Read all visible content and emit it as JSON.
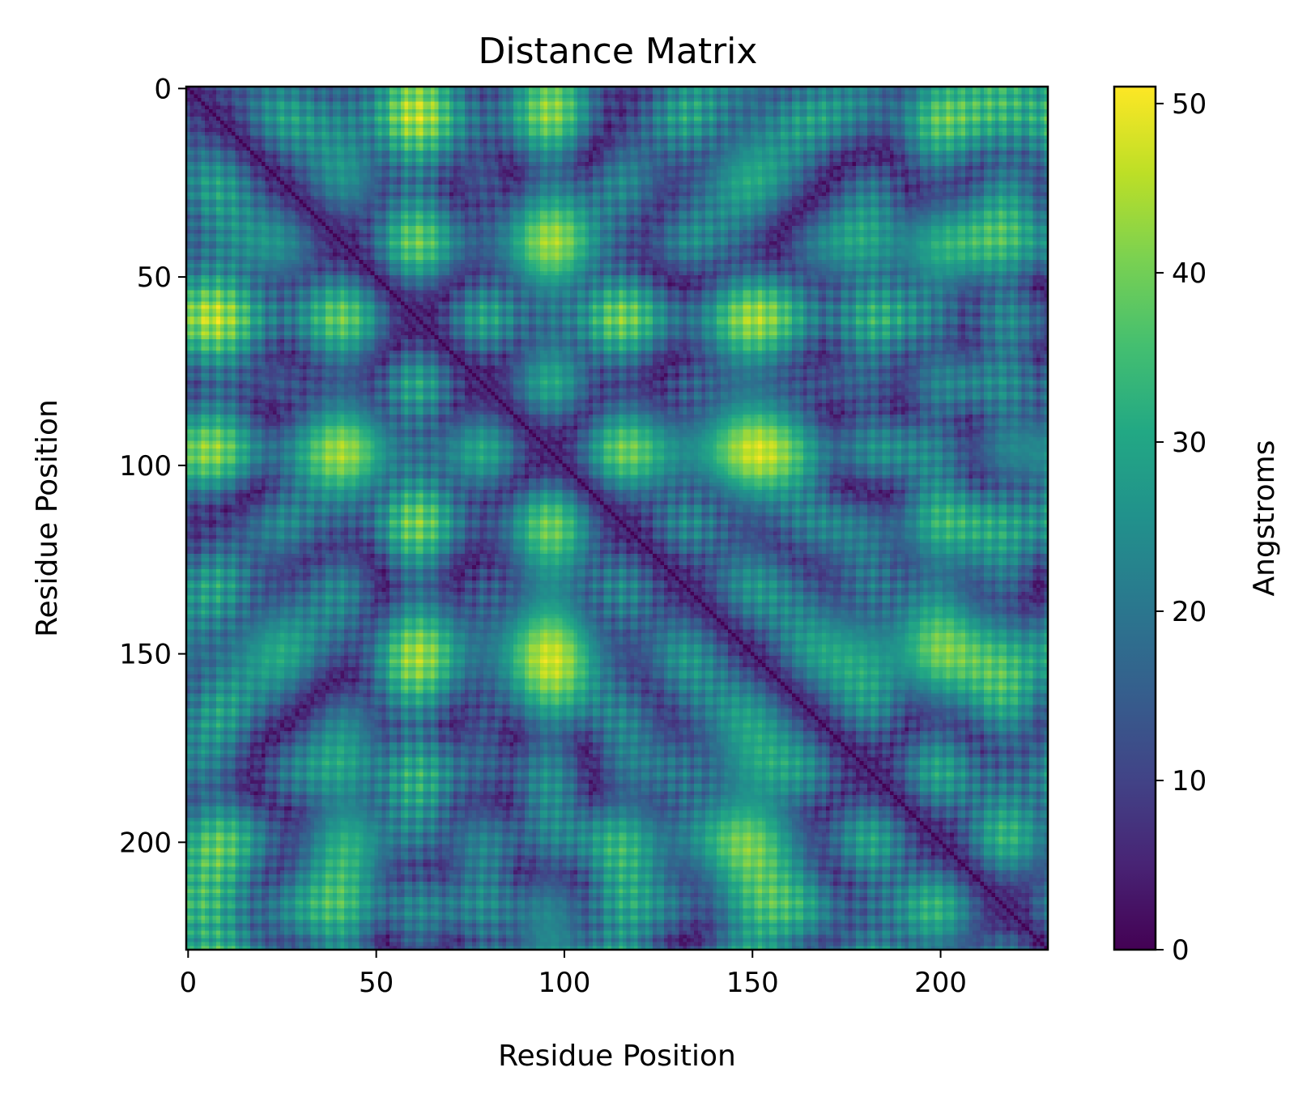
{
  "chart_data": {
    "type": "heatmap",
    "title": "Distance Matrix",
    "xlabel": "Residue Position",
    "ylabel": "Residue Position",
    "colorbar_label": "Angstroms",
    "colormap": "viridis",
    "n_residues": 229,
    "xlim": [
      0,
      228
    ],
    "ylim": [
      0,
      228
    ],
    "y_inverted": true,
    "value_range": [
      0,
      51
    ],
    "x_ticks": [
      "0",
      "50",
      "100",
      "150",
      "200"
    ],
    "y_ticks": [
      "0",
      "50",
      "100",
      "150",
      "200"
    ],
    "colorbar_ticks": [
      "0",
      "10",
      "20",
      "30",
      "40",
      "50"
    ],
    "x_tick_values": [
      0,
      50,
      100,
      150,
      200
    ],
    "y_tick_values": [
      0,
      50,
      100,
      150,
      200
    ],
    "colorbar_tick_values": [
      0,
      10,
      20,
      30,
      40,
      50
    ],
    "diagonal_value": 0,
    "max_distance_approx": 51,
    "colors": {
      "low": "#440154",
      "mid": "#21918c",
      "high": "#fde725",
      "frame": "#000000"
    }
  }
}
